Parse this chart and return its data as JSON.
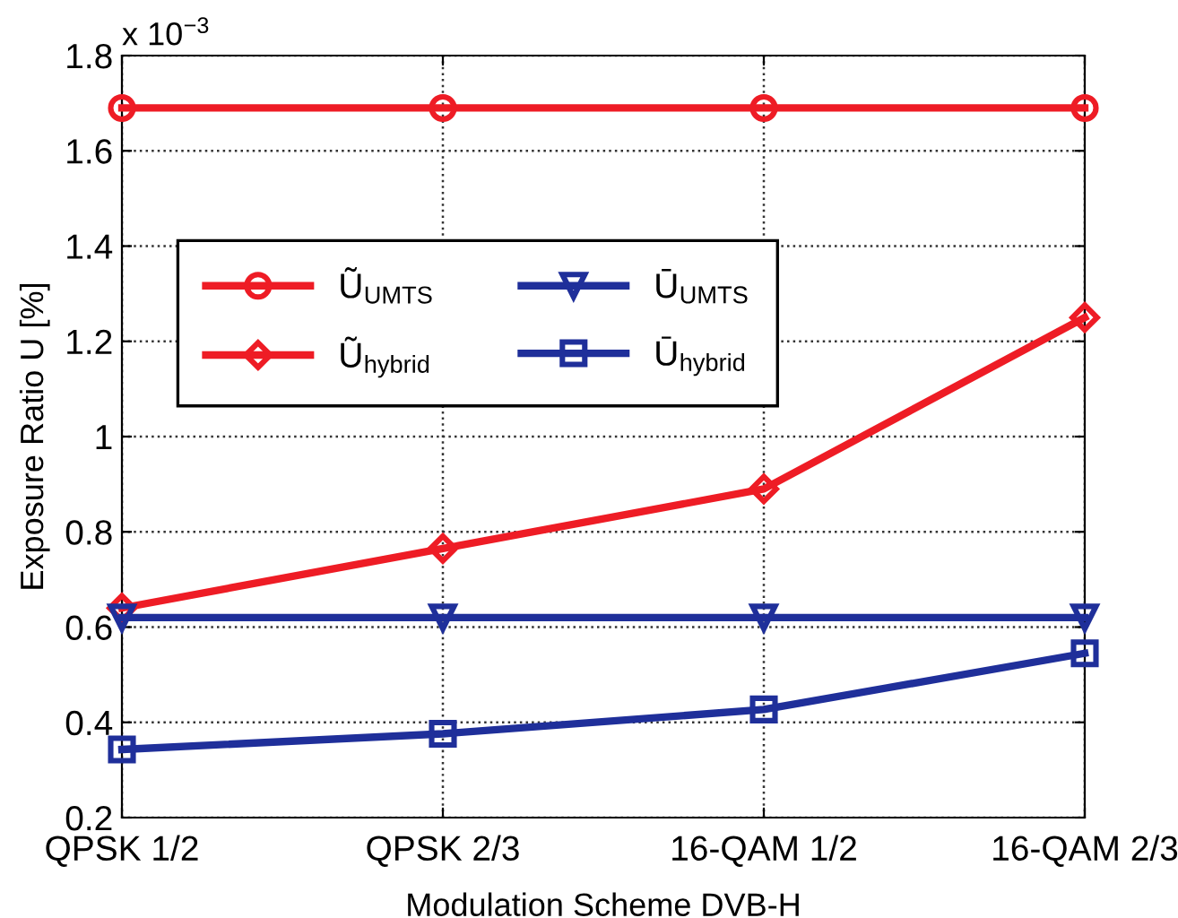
{
  "chart_data": {
    "type": "line",
    "xlabel": "Modulation Scheme DVB-H",
    "ylabel": "Exposure Ratio U [%]",
    "annotations": [
      "x 10$^{−3}$"
    ],
    "categories": [
      "QPSK 1/2",
      "QPSK 2/3",
      "16-QAM 1/2",
      "16-QAM 2/3"
    ],
    "series": [
      {
        "name": "Ũ$_{UMTS}$",
        "color": "#ee1c25",
        "marker": "circle",
        "values": [
          1.69,
          1.69,
          1.69,
          1.69
        ]
      },
      {
        "name": "Ũ$_{hybrid}$",
        "color": "#ee1c25",
        "marker": "diamond",
        "values": [
          0.64,
          0.765,
          0.89,
          1.25
        ]
      },
      {
        "name": "Ū$_{UMTS}$",
        "color": "#1f2f9a",
        "marker": "triangle",
        "values": [
          0.62,
          0.62,
          0.62,
          0.62
        ]
      },
      {
        "name": "Ū$_{hybrid}$",
        "color": "#1f2f9a",
        "marker": "square",
        "values": [
          0.343,
          0.376,
          0.427,
          0.545
        ]
      }
    ],
    "ylim": [
      0.2,
      1.8
    ],
    "yticks": [
      0.2,
      0.4,
      0.6,
      0.8,
      1,
      1.2,
      1.4,
      1.6,
      1.8
    ],
    "grid": true,
    "legend": "upper left",
    "line_style": "solid"
  }
}
